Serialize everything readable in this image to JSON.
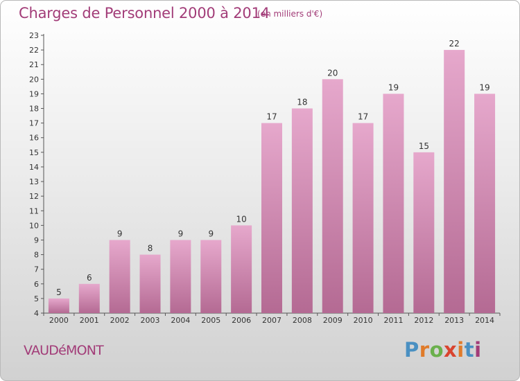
{
  "header": {
    "title": "Charges de Personnel 2000 à 2014",
    "subtitle": "(en milliers d'€)"
  },
  "footer": {
    "commune": "VAUDéMONT",
    "logo_letters": [
      "P",
      "r",
      "o",
      "x",
      "i",
      "t",
      "i"
    ],
    "logo_colors": [
      "#4a90c2",
      "#e07b2a",
      "#6ab04c",
      "#d9442f",
      "#e07b2a",
      "#4a90c2",
      "#a23c78"
    ]
  },
  "colors": {
    "accent": "#a23c78",
    "bar_top": "#e6a8cc",
    "bar_bottom": "#b46a93",
    "axis": "#555555",
    "tick_text": "#333333",
    "grid": "#cfcfcf"
  },
  "chart_data": {
    "type": "bar",
    "title": "Charges de Personnel 2000 à 2014",
    "subtitle": "(en milliers d'€)",
    "categories": [
      "2000",
      "2001",
      "2002",
      "2003",
      "2004",
      "2005",
      "2006",
      "2007",
      "2008",
      "2009",
      "2010",
      "2011",
      "2012",
      "2013",
      "2014"
    ],
    "values": [
      5,
      6,
      9,
      8,
      9,
      9,
      10,
      17,
      18,
      20,
      17,
      19,
      15,
      22,
      19
    ],
    "ylim": [
      4,
      23
    ],
    "yticks": [
      4,
      5,
      6,
      7,
      8,
      9,
      10,
      11,
      12,
      13,
      14,
      15,
      16,
      17,
      18,
      19,
      20,
      21,
      22,
      23
    ],
    "grid": false,
    "data_labels": true,
    "xlabel": "",
    "ylabel": ""
  }
}
